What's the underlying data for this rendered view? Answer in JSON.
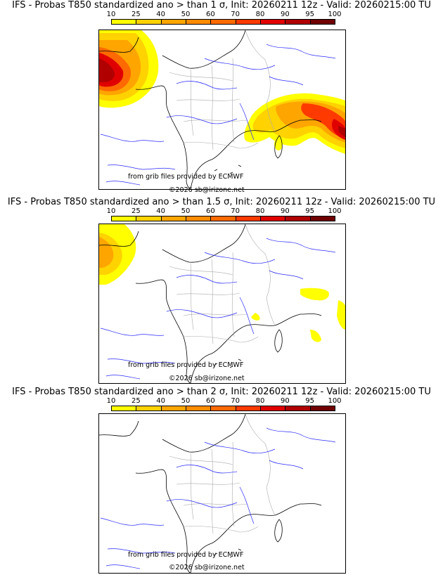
{
  "colorbar": {
    "levels": [
      "10",
      "25",
      "40",
      "50",
      "60",
      "70",
      "80",
      "90",
      "95",
      "100"
    ],
    "colors": [
      "#ffff00",
      "#ffd200",
      "#ffa500",
      "#ff8c00",
      "#ff6a00",
      "#ff3a00",
      "#e00000",
      "#b00000",
      "#700000"
    ]
  },
  "panels": [
    {
      "title": "IFS - Probas T850  standardized ano > than 1 σ, Init: 20260211 12z - Valid: 20260215:00 TU",
      "credit": "from grib files provided by ECMWF",
      "copyright": "©2026 sb@irizone.net"
    },
    {
      "title": "IFS - Probas T850  standardized ano > than 1.5 σ, Init: 20260211 12z - Valid: 20260215:00 TU",
      "credit": "from grib files provided by ECMWF",
      "copyright": "©2026 sb@irizone.net"
    },
    {
      "title": "IFS - Probas T850  standardized ano > than 2 σ, Init: 20260211 12z - Valid: 20260215:00 TU",
      "credit": "from grib files provided by ECMWF",
      "copyright": "©2026 sb@irizone.net"
    }
  ]
}
